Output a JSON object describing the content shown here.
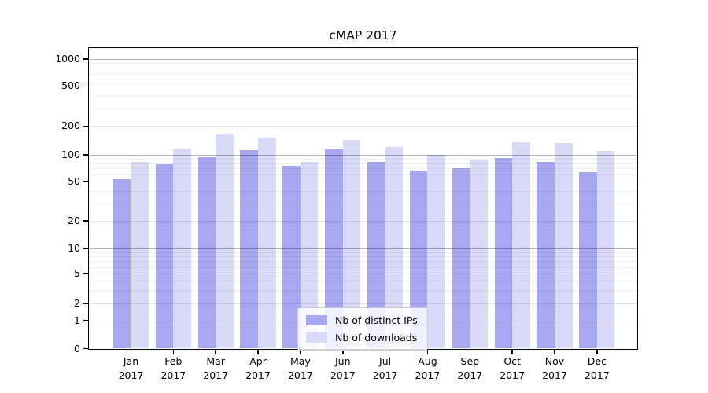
{
  "title": "cMAP 2017",
  "legend": {
    "items": [
      {
        "label": "Nb of distinct IPs",
        "color": "#a8a8f2"
      },
      {
        "label": "Nb of downloads",
        "color": "#d9d9f8"
      }
    ]
  },
  "y_axis": {
    "tick_labels": [
      "1000",
      "500",
      "200",
      "100",
      "50",
      "20",
      "10",
      "5",
      "2",
      "1",
      "0"
    ]
  },
  "chart_data": {
    "type": "bar",
    "title": "cMAP 2017",
    "categories": [
      "Jan 2017",
      "Feb 2017",
      "Mar 2017",
      "Apr 2017",
      "May 2017",
      "Jun 2017",
      "Jul 2017",
      "Aug 2017",
      "Sep 2017",
      "Oct 2017",
      "Nov 2017",
      "Dec 2017"
    ],
    "series": [
      {
        "name": "Nb of distinct IPs",
        "color": "#a8a8f2",
        "values": [
          53,
          79,
          94,
          111,
          75,
          114,
          84,
          66,
          71,
          92,
          84,
          64
        ]
      },
      {
        "name": "Nb of downloads",
        "color": "#d9d9f8",
        "values": [
          83,
          116,
          163,
          152,
          84,
          143,
          120,
          99,
          89,
          136,
          134,
          110
        ]
      }
    ],
    "xlabel": "",
    "ylabel": "",
    "yscale": "symlog",
    "ylim": [
      0,
      1300
    ],
    "y_ticks": [
      {
        "value": 1000,
        "label": "1000"
      },
      {
        "value": 500,
        "label": "500"
      },
      {
        "value": 200,
        "label": "200"
      },
      {
        "value": 100,
        "label": "100"
      },
      {
        "value": 50,
        "label": "50"
      },
      {
        "value": 20,
        "label": "20"
      },
      {
        "value": 10,
        "label": "10"
      },
      {
        "value": 5,
        "label": "5"
      },
      {
        "value": 2,
        "label": "2"
      },
      {
        "value": 1,
        "label": "1"
      },
      {
        "value": 0,
        "label": "0"
      }
    ],
    "y_decade_ticks": [
      1,
      10,
      100,
      1000
    ],
    "y_minor_gridlines": [
      3,
      4,
      6,
      7,
      8,
      9,
      30,
      40,
      60,
      70,
      80,
      90,
      300,
      400,
      600,
      700,
      800,
      900
    ],
    "grid": true,
    "legend_position": "lower center"
  }
}
